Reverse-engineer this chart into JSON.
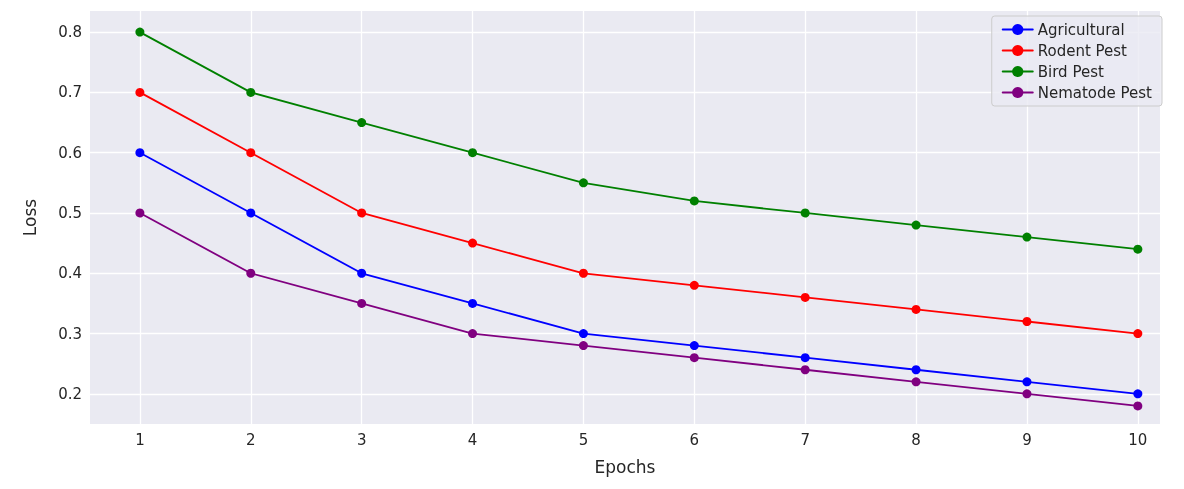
{
  "chart_data": {
    "type": "line",
    "xlabel": "Epochs",
    "ylabel": "Loss",
    "x": [
      1,
      2,
      3,
      4,
      5,
      6,
      7,
      8,
      9,
      10
    ],
    "xlim": [
      0.55,
      10.2
    ],
    "xticks": [
      1,
      2,
      3,
      4,
      5,
      6,
      7,
      8,
      9,
      10
    ],
    "ylim": [
      0.15,
      0.835
    ],
    "yticks": [
      0.2,
      0.3,
      0.4,
      0.5,
      0.6,
      0.7,
      0.8
    ],
    "grid": true,
    "legend": "top right",
    "marker": "circle",
    "line_style": "solid",
    "series": [
      {
        "name": "Agricultural",
        "color": "#0000ff",
        "values": [
          0.6,
          0.5,
          0.4,
          0.35,
          0.3,
          0.28,
          0.26,
          0.24,
          0.22,
          0.2
        ]
      },
      {
        "name": "Rodent Pest",
        "color": "#ff0000",
        "values": [
          0.7,
          0.6,
          0.5,
          0.45,
          0.4,
          0.38,
          0.36,
          0.34,
          0.32,
          0.3
        ]
      },
      {
        "name": "Bird Pest",
        "color": "#008000",
        "values": [
          0.8,
          0.7,
          0.65,
          0.6,
          0.55,
          0.52,
          0.5,
          0.48,
          0.46,
          0.44
        ]
      },
      {
        "name": "Nematode Pest",
        "color": "#800080",
        "values": [
          0.5,
          0.4,
          0.35,
          0.3,
          0.28,
          0.26,
          0.24,
          0.22,
          0.2,
          0.18
        ]
      }
    ]
  }
}
